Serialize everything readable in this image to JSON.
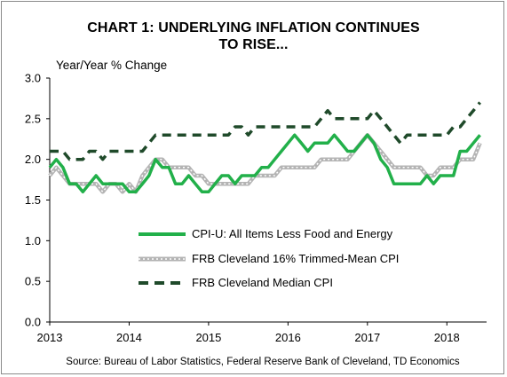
{
  "chart_data": {
    "type": "line",
    "title": "CHART 1: UNDERLYING INFLATION CONTINUES TO RISE...",
    "title_lines": [
      "CHART 1: UNDERLYING INFLATION CONTINUES",
      "TO RISE..."
    ],
    "ylabel": "Year/Year % Change",
    "xlabel": "",
    "ylim": [
      0.0,
      3.0
    ],
    "xlim": [
      2013.0,
      2018.5
    ],
    "y_ticks": [
      0.0,
      0.5,
      1.0,
      1.5,
      2.0,
      2.5,
      3.0
    ],
    "y_tick_labels": [
      "0.0",
      "0.5",
      "1.0",
      "1.5",
      "2.0",
      "2.5",
      "3.0"
    ],
    "x_ticks": [
      2013,
      2014,
      2015,
      2016,
      2017,
      2018
    ],
    "x_tick_labels": [
      "2013",
      "2014",
      "2015",
      "2016",
      "2017",
      "2018"
    ],
    "grid": false,
    "legend_position": "center-right",
    "source": "Source: Bureau of Labor Statistics, Federal Reserve Bank of Cleveland, TD Economics",
    "x": [
      2013.0,
      2013.083,
      2013.167,
      2013.25,
      2013.333,
      2013.417,
      2013.5,
      2013.583,
      2013.667,
      2013.75,
      2013.833,
      2013.917,
      2014.0,
      2014.083,
      2014.167,
      2014.25,
      2014.333,
      2014.417,
      2014.5,
      2014.583,
      2014.667,
      2014.75,
      2014.833,
      2014.917,
      2015.0,
      2015.083,
      2015.167,
      2015.25,
      2015.333,
      2015.417,
      2015.5,
      2015.583,
      2015.667,
      2015.75,
      2015.833,
      2015.917,
      2016.0,
      2016.083,
      2016.167,
      2016.25,
      2016.333,
      2016.417,
      2016.5,
      2016.583,
      2016.667,
      2016.75,
      2016.833,
      2016.917,
      2017.0,
      2017.083,
      2017.167,
      2017.25,
      2017.333,
      2017.417,
      2017.5,
      2017.583,
      2017.667,
      2017.75,
      2017.833,
      2017.917,
      2018.0,
      2018.083,
      2018.167,
      2018.25,
      2018.333,
      2018.417
    ],
    "series": [
      {
        "name": "CPI-U: All Items Less Food and Energy",
        "color": "#22b04a",
        "style": "solid",
        "values": [
          1.9,
          2.0,
          1.9,
          1.7,
          1.7,
          1.6,
          1.7,
          1.8,
          1.7,
          1.7,
          1.7,
          1.7,
          1.6,
          1.6,
          1.7,
          1.8,
          2.0,
          1.9,
          1.9,
          1.7,
          1.7,
          1.8,
          1.7,
          1.6,
          1.6,
          1.7,
          1.8,
          1.8,
          1.7,
          1.8,
          1.8,
          1.8,
          1.9,
          1.9,
          2.0,
          2.1,
          2.2,
          2.3,
          2.2,
          2.1,
          2.2,
          2.2,
          2.2,
          2.3,
          2.2,
          2.1,
          2.1,
          2.2,
          2.3,
          2.2,
          2.0,
          1.9,
          1.7,
          1.7,
          1.7,
          1.7,
          1.7,
          1.8,
          1.7,
          1.8,
          1.8,
          1.8,
          2.1,
          2.1,
          2.2,
          2.3
        ]
      },
      {
        "name": "FRB Cleveland 16% Trimmed-Mean CPI",
        "color": "#b4b4b4",
        "style": "dotted-band",
        "values": [
          1.8,
          1.9,
          1.8,
          1.7,
          1.7,
          1.7,
          1.7,
          1.7,
          1.6,
          1.7,
          1.7,
          1.6,
          1.7,
          1.6,
          1.8,
          1.9,
          2.0,
          2.0,
          1.9,
          1.9,
          1.9,
          1.9,
          1.8,
          1.8,
          1.7,
          1.7,
          1.7,
          1.7,
          1.7,
          1.7,
          1.7,
          1.8,
          1.8,
          1.8,
          1.8,
          1.9,
          1.9,
          1.9,
          1.9,
          1.9,
          1.9,
          2.0,
          2.0,
          2.0,
          2.0,
          2.0,
          2.1,
          2.2,
          2.3,
          2.2,
          2.1,
          2.0,
          1.9,
          1.9,
          1.9,
          1.9,
          1.9,
          1.8,
          1.8,
          1.9,
          1.9,
          1.9,
          2.0,
          2.0,
          2.0,
          2.2
        ]
      },
      {
        "name": "FRB Cleveland Median CPI",
        "color": "#1f4a2a",
        "style": "dashed",
        "values": [
          2.1,
          2.1,
          2.1,
          2.0,
          2.0,
          2.0,
          2.1,
          2.1,
          2.0,
          2.1,
          2.1,
          2.1,
          2.1,
          2.1,
          2.1,
          2.2,
          2.3,
          2.3,
          2.3,
          2.3,
          2.3,
          2.3,
          2.3,
          2.3,
          2.3,
          2.3,
          2.3,
          2.3,
          2.4,
          2.4,
          2.3,
          2.4,
          2.4,
          2.4,
          2.4,
          2.4,
          2.4,
          2.4,
          2.4,
          2.4,
          2.4,
          2.5,
          2.6,
          2.5,
          2.5,
          2.5,
          2.5,
          2.5,
          2.5,
          2.6,
          2.5,
          2.4,
          2.3,
          2.2,
          2.3,
          2.3,
          2.3,
          2.3,
          2.3,
          2.3,
          2.3,
          2.4,
          2.4,
          2.5,
          2.6,
          2.7
        ]
      }
    ]
  }
}
